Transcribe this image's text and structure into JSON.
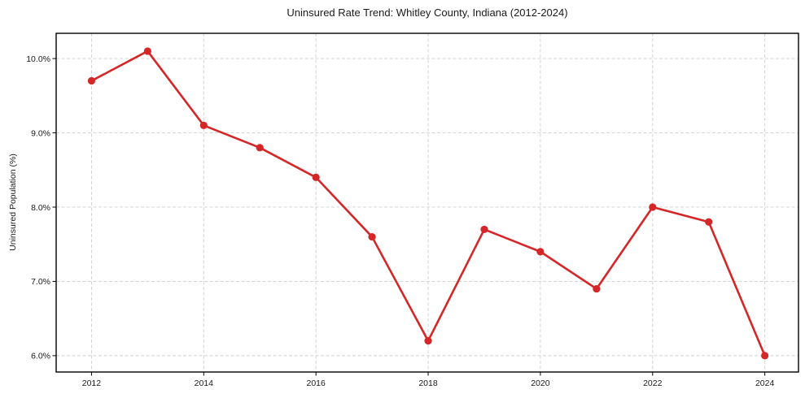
{
  "chart_data": {
    "type": "line",
    "title": "Uninsured Rate Trend: Whitley County, Indiana (2012-2024)",
    "xlabel": "",
    "ylabel": "Uninsured Population (%)",
    "x": [
      2012,
      2013,
      2014,
      2015,
      2016,
      2017,
      2018,
      2019,
      2020,
      2021,
      2022,
      2023,
      2024
    ],
    "values": [
      9.7,
      10.1,
      9.1,
      8.8,
      8.4,
      7.6,
      6.2,
      7.7,
      7.4,
      6.9,
      8.0,
      7.8,
      6.0
    ],
    "x_tick_values": [
      2012,
      2014,
      2016,
      2018,
      2020,
      2022,
      2024
    ],
    "x_tick_labels": [
      "2012",
      "2014",
      "2016",
      "2018",
      "2020",
      "2022",
      "2024"
    ],
    "y_tick_values": [
      6,
      7,
      8,
      9,
      10
    ],
    "y_tick_labels": [
      "6.0%",
      "7.0%",
      "8.0%",
      "9.0%",
      "10.0%"
    ],
    "xlim": [
      2011.37,
      2024.6
    ],
    "ylim": [
      5.78,
      10.34
    ],
    "grid": true,
    "grid_style": "dashed",
    "legend": false,
    "marker": "o",
    "colors": {
      "line": "#d62728",
      "grid": "#cfcfcf",
      "spine": "#000000",
      "text": "#1a1a1a",
      "background": "#ffffff"
    }
  }
}
